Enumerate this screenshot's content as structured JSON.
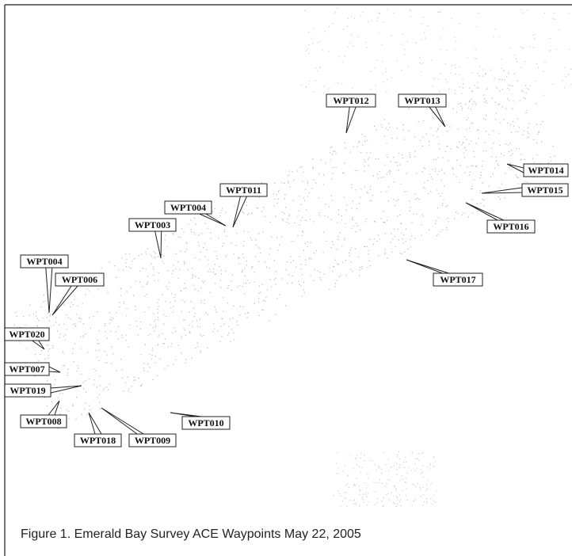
{
  "labels": [
    "WPT012",
    "WPT013",
    "WPT014",
    "WPT015",
    "WPT016",
    "WPT017",
    "WPT011",
    "WPT004",
    "WPT003",
    "WPT004",
    "WPT006",
    "WPT020",
    "WPT007",
    "WPT019",
    "WPT008",
    "WPT018",
    "WPT009",
    "WPT010"
  ],
  "caption": "Figure 1. Emerald Bay Survey ACE Waypoints May 22, 2005"
}
